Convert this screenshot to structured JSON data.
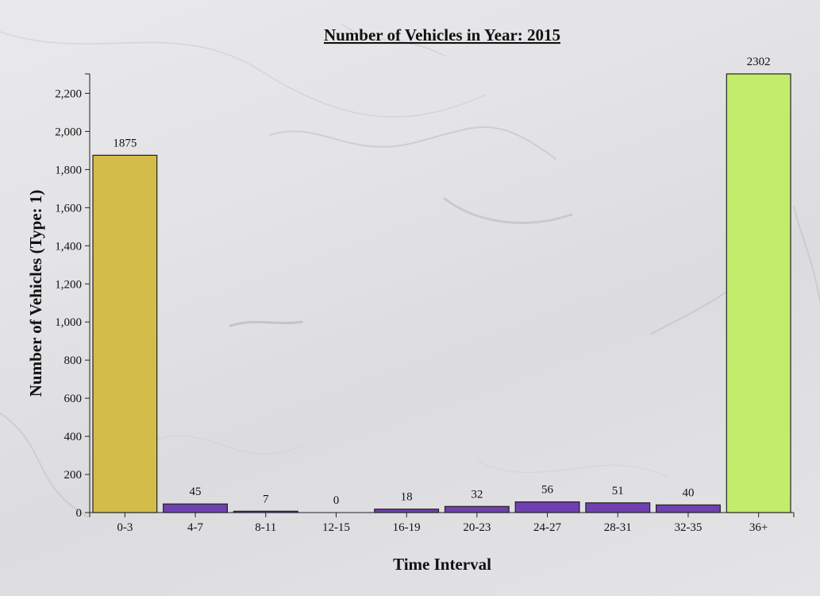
{
  "chart_data": {
    "type": "bar",
    "title": "Number of Vehicles in Year: 2015",
    "xlabel": "Time Interval",
    "ylabel": "Number of Vehicles (Type: 1)",
    "categories": [
      "0-3",
      "4-7",
      "8-11",
      "12-15",
      "16-19",
      "20-23",
      "24-27",
      "28-31",
      "32-35",
      "36+"
    ],
    "values": [
      1875,
      45,
      7,
      0,
      18,
      32,
      56,
      51,
      40,
      2302
    ],
    "data_labels": [
      "1875",
      "45",
      "7",
      "0",
      "18",
      "32",
      "56",
      "51",
      "40",
      "2302"
    ],
    "bar_colors": [
      "#d4bc4a",
      "#7040b0",
      "#7040b0",
      "#7040b0",
      "#7040b0",
      "#7040b0",
      "#7040b0",
      "#7040b0",
      "#7040b0",
      "#c2ec6c"
    ],
    "ylim": [
      0,
      2302
    ],
    "yticks": [
      0,
      200,
      400,
      600,
      800,
      1000,
      1200,
      1400,
      1600,
      1800,
      2000,
      2200
    ],
    "ytick_labels": [
      "0",
      "200",
      "400",
      "600",
      "800",
      "1,000",
      "1,200",
      "1,400",
      "1,600",
      "1,800",
      "2,000",
      "2,200"
    ],
    "grid": false,
    "legend": "none"
  }
}
